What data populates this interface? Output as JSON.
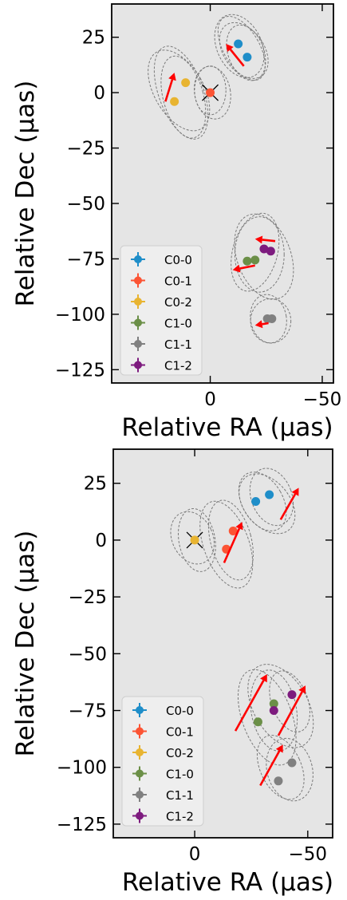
{
  "chart_data": [
    {
      "type": "scatter",
      "xlabel": "Relative RA (μas)",
      "ylabel": "Relative Dec (μas)",
      "x_inverted": true,
      "xlim": [
        44,
        -55
      ],
      "ylim": [
        -131,
        40
      ],
      "xticks": [
        0,
        -50
      ],
      "yticks": [
        25,
        0,
        -25,
        -50,
        -75,
        -100,
        -125
      ],
      "xticklabels": [
        "0",
        "−50"
      ],
      "yticklabels": [
        "25",
        "0",
        "−25",
        "−50",
        "−75",
        "−100",
        "−125"
      ],
      "legend_position": "lower left",
      "background": "#e5e5e5",
      "series": [
        {
          "name": "C0-0",
          "color": "#1f8ec9",
          "points": [
            [
              -12.5,
              22
            ],
            [
              -16.5,
              16
            ]
          ]
        },
        {
          "name": "C0-1",
          "color": "#fc5434",
          "points": [
            [
              0,
              0
            ]
          ],
          "reference": true
        },
        {
          "name": "C0-2",
          "color": "#e8b431",
          "points": [
            [
              11,
              4.5
            ],
            [
              16,
              -4
            ]
          ]
        },
        {
          "name": "C1-0",
          "color": "#6b8f47",
          "points": [
            [
              -16.5,
              -76
            ],
            [
              -20,
              -75.5
            ]
          ]
        },
        {
          "name": "C1-1",
          "color": "#808080",
          "points": [
            [
              -25.5,
              -102
            ],
            [
              -27.5,
              -102
            ]
          ]
        },
        {
          "name": "C1-2",
          "color": "#7d1b7e",
          "points": [
            [
              -24,
              -70.5
            ],
            [
              -27,
              -71.5
            ]
          ]
        }
      ],
      "arrows": [
        {
          "from": [
            -15,
            12
          ],
          "to": [
            -7,
            22
          ]
        },
        {
          "from": [
            20,
            -4
          ],
          "to": [
            16,
            9
          ]
        },
        {
          "from": [
            -29,
            -67
          ],
          "to": [
            -20,
            -66
          ]
        },
        {
          "from": [
            -20,
            -78
          ],
          "to": [
            -10,
            -80
          ]
        },
        {
          "from": [
            -26,
            -104
          ],
          "to": [
            -20,
            -105
          ]
        }
      ],
      "ellipses": [
        {
          "c": [
            -14,
            20
          ],
          "rx": 8,
          "ry": 16,
          "rot": 30
        },
        {
          "c": [
            -13,
            21
          ],
          "rx": 10,
          "ry": 15,
          "rot": 25
        },
        {
          "c": [
            -15,
            19
          ],
          "rx": 9,
          "ry": 14,
          "rot": 35
        },
        {
          "c": [
            -16,
            18
          ],
          "rx": 8,
          "ry": 13,
          "rot": 20
        },
        {
          "c": [
            13,
            0
          ],
          "rx": 10,
          "ry": 22,
          "rot": 20
        },
        {
          "c": [
            14,
            1
          ],
          "rx": 11,
          "ry": 20,
          "rot": 30
        },
        {
          "c": [
            12,
            -2
          ],
          "rx": 9,
          "ry": 19,
          "rot": 15
        },
        {
          "c": [
            -1,
            0
          ],
          "rx": 8,
          "ry": 12,
          "rot": 10
        },
        {
          "c": [
            0,
            1
          ],
          "rx": 7,
          "ry": 11,
          "rot": 0
        },
        {
          "c": [
            -20,
            -72
          ],
          "rx": 10,
          "ry": 18,
          "rot": -15
        },
        {
          "c": [
            -24,
            -74
          ],
          "rx": 12,
          "ry": 20,
          "rot": 20
        },
        {
          "c": [
            -22,
            -73
          ],
          "rx": 11,
          "ry": 17,
          "rot": 0
        },
        {
          "c": [
            -27,
            -103
          ],
          "rx": 9,
          "ry": 10,
          "rot": 0
        },
        {
          "c": [
            -26,
            -102
          ],
          "rx": 8,
          "ry": 11,
          "rot": 10
        }
      ]
    },
    {
      "type": "scatter",
      "xlabel": "Relative RA (μas)",
      "ylabel": "Relative Dec (μas)",
      "x_inverted": true,
      "xlim": [
        36,
        -61
      ],
      "ylim": [
        -131,
        40
      ],
      "xticks": [
        0,
        -50
      ],
      "yticks": [
        25,
        0,
        -25,
        -50,
        -75,
        -100,
        -125
      ],
      "xticklabels": [
        "0",
        "−50"
      ],
      "yticklabels": [
        "25",
        "0",
        "−25",
        "−50",
        "−75",
        "−100",
        "−125"
      ],
      "legend_position": "lower left",
      "background": "#e5e5e5",
      "series": [
        {
          "name": "C0-0",
          "color": "#1f8ec9",
          "points": [
            [
              -27,
              17
            ],
            [
              -33,
              20
            ]
          ]
        },
        {
          "name": "C0-1",
          "color": "#fc5434",
          "points": [
            [
              -14,
              -4
            ],
            [
              -17,
              4
            ]
          ]
        },
        {
          "name": "C0-2",
          "color": "#e8b431",
          "points": [
            [
              0,
              0
            ]
          ],
          "reference": true
        },
        {
          "name": "C1-0",
          "color": "#6b8f47",
          "points": [
            [
              -28,
              -80
            ],
            [
              -35,
              -72
            ]
          ]
        },
        {
          "name": "C1-1",
          "color": "#808080",
          "points": [
            [
              -37,
              -106
            ],
            [
              -43,
              -98
            ]
          ]
        },
        {
          "name": "C1-2",
          "color": "#7d1b7e",
          "points": [
            [
              -35,
              -75
            ],
            [
              -43,
              -68
            ]
          ]
        }
      ],
      "arrows": [
        {
          "from": [
            -38,
            9
          ],
          "to": [
            -46,
            23
          ]
        },
        {
          "from": [
            -13,
            -10
          ],
          "to": [
            -21,
            8
          ]
        },
        {
          "from": [
            -18,
            -84
          ],
          "to": [
            -32,
            -59
          ]
        },
        {
          "from": [
            -37,
            -86
          ],
          "to": [
            -49,
            -64
          ]
        },
        {
          "from": [
            -29,
            -108
          ],
          "to": [
            -39,
            -90
          ]
        }
      ],
      "ellipses": [
        {
          "c": [
            -30,
            17
          ],
          "rx": 9,
          "ry": 14,
          "rot": 30
        },
        {
          "c": [
            -34,
            19
          ],
          "rx": 9,
          "ry": 13,
          "rot": 20
        },
        {
          "c": [
            -32,
            16
          ],
          "rx": 10,
          "ry": 15,
          "rot": 40
        },
        {
          "c": [
            -14,
            -2
          ],
          "rx": 10,
          "ry": 20,
          "rot": 20
        },
        {
          "c": [
            -16,
            0
          ],
          "rx": 9,
          "ry": 18,
          "rot": 15
        },
        {
          "c": [
            -1,
            0
          ],
          "rx": 8,
          "ry": 14,
          "rot": 10
        },
        {
          "c": [
            1,
            1
          ],
          "rx": 9,
          "ry": 12,
          "rot": 25
        },
        {
          "c": [
            -32,
            -78
          ],
          "rx": 11,
          "ry": 22,
          "rot": 20
        },
        {
          "c": [
            -38,
            -73
          ],
          "rx": 12,
          "ry": 20,
          "rot": 30
        },
        {
          "c": [
            -35,
            -75
          ],
          "rx": 10,
          "ry": 18,
          "rot": 10
        },
        {
          "c": [
            -42,
            -71
          ],
          "rx": 8,
          "ry": 14,
          "rot": 20
        },
        {
          "c": [
            -38,
            -100
          ],
          "rx": 9,
          "ry": 15,
          "rot": 25
        },
        {
          "c": [
            -42,
            -101
          ],
          "rx": 10,
          "ry": 14,
          "rot": 15
        }
      ]
    }
  ]
}
